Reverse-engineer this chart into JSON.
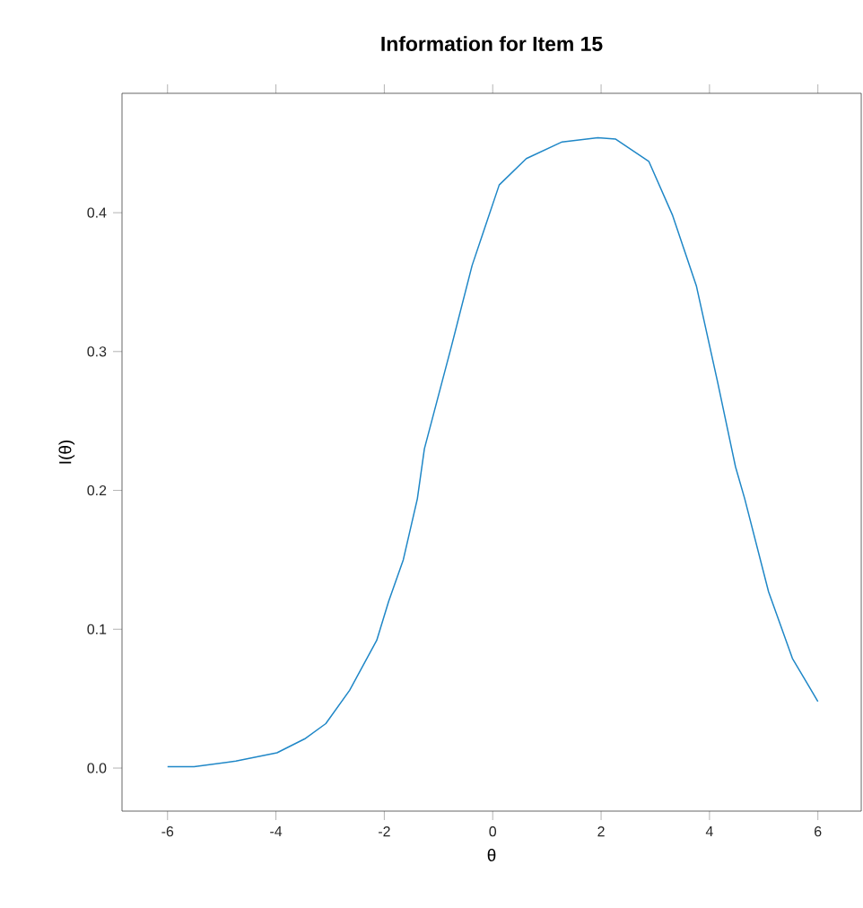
{
  "chart_data": {
    "type": "line",
    "title": "Information for Item 15",
    "xlabel": "θ",
    "ylabel": "I(θ)",
    "xlim": [
      -6.84,
      6.8
    ],
    "ylim": [
      -0.031,
      0.486
    ],
    "xticks": [
      -6,
      -4,
      -2,
      0,
      2,
      4,
      6
    ],
    "yticks": [
      {
        "value": 0,
        "label": "0.0"
      },
      0.1,
      0.2,
      0.3,
      0.4
    ],
    "grid": false,
    "series": [
      {
        "color": "#1f87c7",
        "x": [
          -6,
          -5.51,
          -4.74,
          -3.98,
          -3.47,
          -3.08,
          -2.64,
          -2.14,
          -1.92,
          -1.65,
          -1.39,
          -1.26,
          -0.76,
          -0.38,
          0.12,
          0.62,
          1.28,
          1.94,
          2.27,
          2.88,
          3.32,
          3.76,
          4.15,
          4.48,
          4.65,
          5.09,
          5.53,
          6.0
        ],
        "values": [
          0.001,
          0.001,
          0.005,
          0.011,
          0.021,
          0.032,
          0.056,
          0.092,
          0.12,
          0.15,
          0.194,
          0.23,
          0.304,
          0.362,
          0.42,
          0.439,
          0.451,
          0.454,
          0.453,
          0.437,
          0.398,
          0.347,
          0.278,
          0.217,
          0.194,
          0.127,
          0.079,
          0.048
        ]
      }
    ]
  }
}
